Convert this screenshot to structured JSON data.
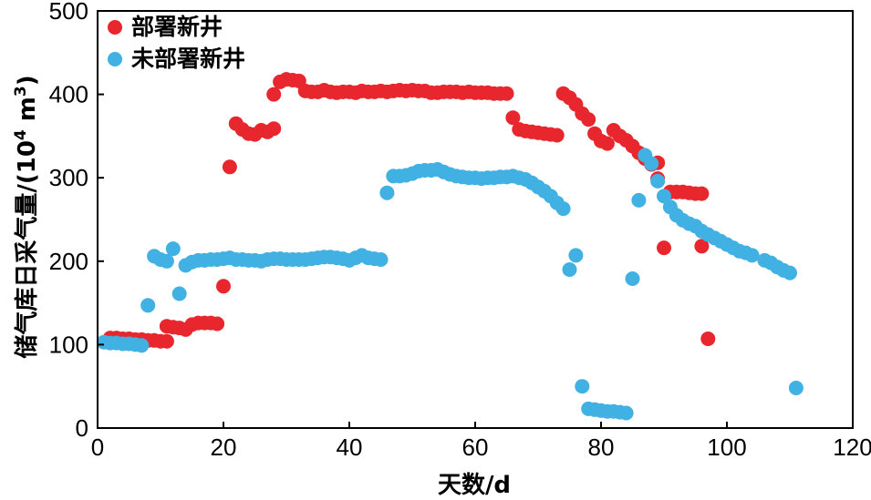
{
  "chart_data": {
    "type": "scatter",
    "xlabel": "天数/d",
    "ylabel_main": "储气库日采气量/(10",
    "ylabel_sup": "4",
    "ylabel_unit": " m",
    "ylabel_sup2": "3",
    "ylabel_end": ")",
    "xlim": [
      0,
      120
    ],
    "ylim": [
      0,
      500
    ],
    "xticks": [
      0,
      20,
      40,
      60,
      80,
      100,
      120
    ],
    "yticks": [
      0,
      100,
      200,
      300,
      400,
      500
    ],
    "grid": false,
    "legend_position": "top-left",
    "series": [
      {
        "name": "部署新井",
        "color": "#e8262d",
        "points": [
          [
            2,
            108
          ],
          [
            3,
            108
          ],
          [
            4,
            107
          ],
          [
            5,
            107
          ],
          [
            6,
            106
          ],
          [
            7,
            106
          ],
          [
            8,
            105
          ],
          [
            9,
            105
          ],
          [
            10,
            104
          ],
          [
            11,
            104
          ],
          [
            11,
            122
          ],
          [
            12,
            121
          ],
          [
            13,
            120
          ],
          [
            14,
            118
          ],
          [
            15,
            124
          ],
          [
            16,
            126
          ],
          [
            17,
            126
          ],
          [
            18,
            126
          ],
          [
            19,
            125
          ],
          [
            20,
            170
          ],
          [
            21,
            313
          ],
          [
            22,
            365
          ],
          [
            23,
            358
          ],
          [
            24,
            353
          ],
          [
            25,
            352
          ],
          [
            26,
            357
          ],
          [
            27,
            355
          ],
          [
            28,
            359
          ],
          [
            28,
            400
          ],
          [
            29,
            415
          ],
          [
            30,
            418
          ],
          [
            31,
            417
          ],
          [
            32,
            416
          ],
          [
            33,
            404
          ],
          [
            34,
            403
          ],
          [
            35,
            403
          ],
          [
            36,
            405
          ],
          [
            37,
            403
          ],
          [
            38,
            402
          ],
          [
            39,
            403
          ],
          [
            40,
            403
          ],
          [
            41,
            402
          ],
          [
            42,
            404
          ],
          [
            43,
            403
          ],
          [
            44,
            403
          ],
          [
            45,
            404
          ],
          [
            46,
            403
          ],
          [
            47,
            404
          ],
          [
            48,
            405
          ],
          [
            49,
            404
          ],
          [
            50,
            405
          ],
          [
            51,
            404
          ],
          [
            52,
            404
          ],
          [
            53,
            402
          ],
          [
            54,
            402
          ],
          [
            55,
            403
          ],
          [
            56,
            403
          ],
          [
            57,
            403
          ],
          [
            58,
            402
          ],
          [
            59,
            403
          ],
          [
            60,
            402
          ],
          [
            61,
            402
          ],
          [
            62,
            402
          ],
          [
            63,
            401
          ],
          [
            64,
            401
          ],
          [
            65,
            401
          ],
          [
            66,
            372
          ],
          [
            67,
            358
          ],
          [
            68,
            356
          ],
          [
            69,
            355
          ],
          [
            70,
            354
          ],
          [
            71,
            353
          ],
          [
            72,
            352
          ],
          [
            73,
            351
          ],
          [
            74,
            401
          ],
          [
            75,
            396
          ],
          [
            76,
            388
          ],
          [
            77,
            377
          ],
          [
            78,
            370
          ],
          [
            79,
            353
          ],
          [
            80,
            344
          ],
          [
            81,
            341
          ],
          [
            82,
            357
          ],
          [
            83,
            350
          ],
          [
            84,
            345
          ],
          [
            85,
            338
          ],
          [
            86,
            330
          ],
          [
            87,
            323
          ],
          [
            88,
            316
          ],
          [
            89,
            318
          ],
          [
            89,
            299
          ],
          [
            90,
            216
          ],
          [
            91,
            283
          ],
          [
            92,
            283
          ],
          [
            93,
            283
          ],
          [
            94,
            282
          ],
          [
            95,
            281
          ],
          [
            96,
            281
          ],
          [
            96,
            218
          ],
          [
            97,
            107
          ]
        ]
      },
      {
        "name": "未部署新井",
        "color": "#41b1e3",
        "points": [
          [
            1,
            103
          ],
          [
            2,
            102
          ],
          [
            3,
            102
          ],
          [
            4,
            101
          ],
          [
            5,
            101
          ],
          [
            6,
            100
          ],
          [
            7,
            99
          ],
          [
            8,
            147
          ],
          [
            9,
            206
          ],
          [
            10,
            202
          ],
          [
            11,
            200
          ],
          [
            12,
            215
          ],
          [
            13,
            161
          ],
          [
            14,
            195
          ],
          [
            15,
            199
          ],
          [
            16,
            201
          ],
          [
            17,
            201
          ],
          [
            18,
            202
          ],
          [
            19,
            202
          ],
          [
            20,
            203
          ],
          [
            21,
            204
          ],
          [
            22,
            202
          ],
          [
            23,
            202
          ],
          [
            24,
            201
          ],
          [
            25,
            201
          ],
          [
            26,
            200
          ],
          [
            27,
            202
          ],
          [
            28,
            203
          ],
          [
            29,
            203
          ],
          [
            30,
            202
          ],
          [
            31,
            202
          ],
          [
            32,
            202
          ],
          [
            33,
            202
          ],
          [
            34,
            203
          ],
          [
            35,
            204
          ],
          [
            36,
            205
          ],
          [
            37,
            205
          ],
          [
            38,
            204
          ],
          [
            39,
            203
          ],
          [
            40,
            201
          ],
          [
            41,
            204
          ],
          [
            42,
            207
          ],
          [
            43,
            204
          ],
          [
            44,
            203
          ],
          [
            45,
            202
          ],
          [
            46,
            282
          ],
          [
            47,
            302
          ],
          [
            48,
            302
          ],
          [
            49,
            303
          ],
          [
            50,
            305
          ],
          [
            51,
            308
          ],
          [
            52,
            309
          ],
          [
            53,
            309
          ],
          [
            54,
            310
          ],
          [
            55,
            307
          ],
          [
            56,
            304
          ],
          [
            57,
            302
          ],
          [
            58,
            301
          ],
          [
            59,
            300
          ],
          [
            60,
            300
          ],
          [
            61,
            299
          ],
          [
            62,
            300
          ],
          [
            63,
            300
          ],
          [
            64,
            301
          ],
          [
            65,
            301
          ],
          [
            66,
            302
          ],
          [
            67,
            300
          ],
          [
            68,
            298
          ],
          [
            69,
            294
          ],
          [
            70,
            289
          ],
          [
            71,
            284
          ],
          [
            72,
            278
          ],
          [
            73,
            270
          ],
          [
            74,
            263
          ],
          [
            75,
            190
          ],
          [
            76,
            207
          ],
          [
            77,
            50
          ],
          [
            78,
            23
          ],
          [
            79,
            22
          ],
          [
            80,
            21
          ],
          [
            81,
            20
          ],
          [
            82,
            20
          ],
          [
            83,
            19
          ],
          [
            84,
            18
          ],
          [
            85,
            179
          ],
          [
            86,
            273
          ],
          [
            87,
            327
          ],
          [
            88,
            317
          ],
          [
            89,
            296
          ],
          [
            90,
            278
          ],
          [
            91,
            265
          ],
          [
            92,
            255
          ],
          [
            93,
            249
          ],
          [
            94,
            245
          ],
          [
            95,
            242
          ],
          [
            96,
            236
          ],
          [
            97,
            232
          ],
          [
            98,
            228
          ],
          [
            99,
            224
          ],
          [
            100,
            220
          ],
          [
            101,
            216
          ],
          [
            102,
            212
          ],
          [
            103,
            210
          ],
          [
            104,
            207
          ],
          [
            106,
            201
          ],
          [
            107,
            198
          ],
          [
            108,
            193
          ],
          [
            109,
            189
          ],
          [
            110,
            186
          ],
          [
            111,
            48
          ]
        ]
      }
    ]
  }
}
